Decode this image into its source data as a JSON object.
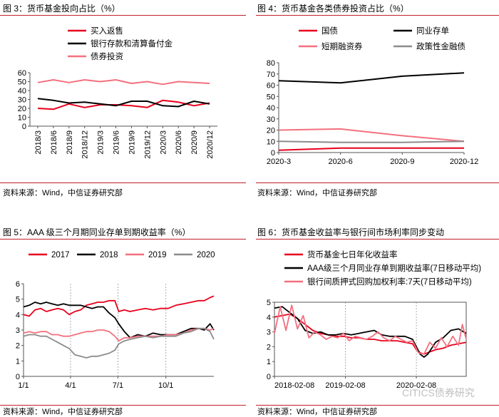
{
  "sources": {
    "p3": "资料来源：Wind，中信证券研究部",
    "p4": "资料来源：Wind，中信证券研究部",
    "p5": "资料来源：Wind，中信证券研究部",
    "p6": "资料来源：Wind，中信证券研究部"
  },
  "watermark": "CITICS债券研究",
  "chart_data": [
    {
      "id": "fig3",
      "type": "line",
      "title": "图 3：货币基金投向占比（%）",
      "categories": [
        "2018/3",
        "2018/6",
        "2018/9",
        "2018/12",
        "2019/3",
        "2019/6",
        "2019/9",
        "2019/12",
        "2020/3",
        "2020/6",
        "2020/9",
        "2020/12"
      ],
      "ylim": [
        0,
        60
      ],
      "yticks": [
        0,
        10,
        20,
        30,
        40,
        50,
        60
      ],
      "grid": false,
      "legend_position": "top-left",
      "series": [
        {
          "name": "买入返售",
          "color": "#e8001c",
          "values": [
            20,
            19,
            25,
            21,
            24,
            24,
            23,
            21,
            29,
            27,
            23,
            26
          ]
        },
        {
          "name": "银行存款和清算备付金",
          "color": "#000000",
          "values": [
            31,
            29,
            26,
            27,
            25,
            23,
            28,
            28,
            23,
            22,
            28,
            25
          ]
        },
        {
          "name": "债券投资",
          "color": "#f4707e",
          "values": [
            49,
            52,
            49,
            52,
            50,
            52,
            48,
            50,
            47,
            50,
            49,
            48
          ]
        }
      ]
    },
    {
      "id": "fig4",
      "type": "line",
      "title": "图 4：货币基金各类债券投资占比（%）",
      "categories": [
        "2020-3",
        "2020-6",
        "2020-9",
        "2020-12"
      ],
      "ylim": [
        0,
        80
      ],
      "yticks": [
        0,
        10,
        20,
        30,
        40,
        50,
        60,
        70,
        80
      ],
      "grid": false,
      "legend_position": "top",
      "series": [
        {
          "name": "国债",
          "color": "#e8001c",
          "values": [
            2,
            4,
            4,
            4
          ]
        },
        {
          "name": "同业存单",
          "color": "#000000",
          "values": [
            64,
            62,
            68,
            71
          ]
        },
        {
          "name": "短期融资券",
          "color": "#f4707e",
          "values": [
            20,
            21,
            15,
            10
          ]
        },
        {
          "name": "政策性金融债",
          "color": "#8c8c8c",
          "values": [
            10,
            9,
            9,
            10
          ]
        }
      ]
    },
    {
      "id": "fig5",
      "type": "line",
      "title": "图 5：AAA 级三个月期同业存单到期收益率（%）",
      "x_labels": [
        "1/1",
        "4/1",
        "7/1",
        "10/1"
      ],
      "x_fracs": [
        0.0,
        0.247,
        0.496,
        0.748
      ],
      "ylim": [
        0,
        6
      ],
      "yticks": [
        0,
        1,
        2,
        3,
        4,
        5,
        6
      ],
      "grid": false,
      "legend_position": "top",
      "series": [
        {
          "name": "2017",
          "color": "#e8001c",
          "x": [
            0,
            0.03,
            0.06,
            0.09,
            0.12,
            0.15,
            0.18,
            0.21,
            0.24,
            0.27,
            0.3,
            0.33,
            0.36,
            0.39,
            0.42,
            0.45,
            0.48,
            0.5,
            0.53,
            0.56,
            0.6,
            0.64,
            0.68,
            0.72,
            0.76,
            0.8,
            0.84,
            0.88,
            0.92,
            0.95,
            0.98,
            1.0
          ],
          "values": [
            4.0,
            3.9,
            4.3,
            4.4,
            4.2,
            4.3,
            4.4,
            4.3,
            4.0,
            4.2,
            4.3,
            4.6,
            4.7,
            4.8,
            4.8,
            4.9,
            4.9,
            4.2,
            4.3,
            4.2,
            4.3,
            4.4,
            4.3,
            4.4,
            4.4,
            4.6,
            4.7,
            4.8,
            4.9,
            4.9,
            5.1,
            5.2
          ]
        },
        {
          "name": "2018",
          "color": "#000000",
          "x": [
            0,
            0.03,
            0.06,
            0.09,
            0.12,
            0.15,
            0.18,
            0.21,
            0.24,
            0.27,
            0.3,
            0.33,
            0.36,
            0.39,
            0.42,
            0.45,
            0.48,
            0.5,
            0.53,
            0.56,
            0.6,
            0.64,
            0.68,
            0.72,
            0.76,
            0.8,
            0.84,
            0.88,
            0.92,
            0.95,
            0.98,
            1.0
          ],
          "values": [
            4.5,
            4.6,
            4.8,
            4.7,
            4.8,
            4.7,
            4.6,
            4.7,
            4.6,
            4.6,
            4.6,
            4.5,
            4.4,
            4.5,
            4.5,
            4.1,
            3.8,
            3.4,
            2.9,
            2.5,
            2.7,
            2.6,
            2.8,
            2.7,
            2.7,
            2.7,
            2.9,
            3.1,
            3.1,
            3.0,
            3.4,
            3.0
          ]
        },
        {
          "name": "2019",
          "color": "#f4707e",
          "x": [
            0,
            0.03,
            0.06,
            0.09,
            0.12,
            0.15,
            0.18,
            0.21,
            0.24,
            0.27,
            0.3,
            0.33,
            0.36,
            0.39,
            0.42,
            0.45,
            0.48,
            0.5,
            0.53,
            0.56,
            0.6,
            0.64,
            0.68,
            0.72,
            0.76,
            0.8,
            0.84,
            0.88,
            0.92,
            0.95,
            0.98,
            1.0
          ],
          "values": [
            2.8,
            2.9,
            2.8,
            2.9,
            2.9,
            2.7,
            2.7,
            2.6,
            2.6,
            2.7,
            2.8,
            2.9,
            2.9,
            3.0,
            3.0,
            2.9,
            2.6,
            2.3,
            2.5,
            2.5,
            2.6,
            2.6,
            2.6,
            2.6,
            2.7,
            2.7,
            2.8,
            3.0,
            3.1,
            3.1,
            3.0,
            3.1
          ]
        },
        {
          "name": "2020",
          "color": "#8c8c8c",
          "x": [
            0,
            0.03,
            0.06,
            0.09,
            0.12,
            0.15,
            0.18,
            0.21,
            0.24,
            0.27,
            0.3,
            0.33,
            0.36,
            0.39,
            0.42,
            0.45,
            0.48,
            0.5,
            0.53,
            0.56,
            0.6,
            0.64,
            0.68,
            0.72,
            0.76,
            0.8,
            0.84,
            0.88,
            0.92,
            0.95,
            0.98,
            1.0
          ],
          "values": [
            2.6,
            2.7,
            2.7,
            2.6,
            2.6,
            2.4,
            2.2,
            2.0,
            1.8,
            1.4,
            1.3,
            1.2,
            1.3,
            1.3,
            1.4,
            1.5,
            1.7,
            2.1,
            2.3,
            2.4,
            2.5,
            2.6,
            2.5,
            2.6,
            2.6,
            2.6,
            2.8,
            2.9,
            3.1,
            3.1,
            2.9,
            2.4
          ]
        }
      ]
    },
    {
      "id": "fig6",
      "type": "line",
      "title": "图 6：货币基金收益率与银行间市场利率同步变动",
      "x_labels": [
        "2018-02-08",
        "2019-02-08",
        "2020-02-08"
      ],
      "x_fracs": [
        0.0,
        0.37,
        0.74
      ],
      "ylim": [
        0,
        5
      ],
      "yticks": [
        0,
        1,
        2,
        3,
        4,
        5
      ],
      "grid": false,
      "legend_position": "top",
      "series": [
        {
          "name": "货币基金七日年化收益率",
          "color": "#e8001c",
          "x": [
            0,
            0.04,
            0.08,
            0.12,
            0.16,
            0.2,
            0.24,
            0.28,
            0.32,
            0.36,
            0.4,
            0.44,
            0.48,
            0.52,
            0.56,
            0.6,
            0.64,
            0.68,
            0.72,
            0.74,
            0.76,
            0.78,
            0.8,
            0.84,
            0.88,
            0.92,
            0.96,
            1.0
          ],
          "values": [
            4.0,
            4.1,
            4.2,
            3.9,
            3.5,
            3.1,
            2.9,
            2.8,
            2.7,
            2.7,
            2.6,
            2.6,
            2.5,
            2.5,
            2.4,
            2.4,
            2.4,
            2.3,
            2.2,
            1.8,
            1.6,
            1.5,
            1.6,
            1.8,
            1.9,
            2.1,
            2.2,
            2.3
          ]
        },
        {
          "name": "AAA级三个月同业存单到期收益率(7日移动平均)",
          "color": "#000000",
          "x": [
            0,
            0.04,
            0.08,
            0.12,
            0.16,
            0.2,
            0.24,
            0.28,
            0.32,
            0.36,
            0.4,
            0.44,
            0.48,
            0.52,
            0.56,
            0.6,
            0.64,
            0.68,
            0.72,
            0.74,
            0.76,
            0.78,
            0.8,
            0.84,
            0.88,
            0.92,
            0.96,
            1.0
          ],
          "values": [
            4.6,
            4.7,
            4.3,
            3.9,
            3.1,
            2.9,
            3.0,
            2.8,
            2.8,
            2.9,
            2.8,
            2.9,
            3.0,
            3.1,
            2.8,
            2.7,
            2.7,
            2.7,
            2.5,
            2.0,
            1.5,
            1.3,
            1.5,
            2.3,
            2.6,
            3.1,
            3.2,
            2.9
          ]
        },
        {
          "name": "银行间质押式回购加权利率:7天(7日移动平均)",
          "color": "#f4707e",
          "x": [
            0,
            0.03,
            0.06,
            0.09,
            0.12,
            0.15,
            0.18,
            0.21,
            0.24,
            0.27,
            0.3,
            0.33,
            0.36,
            0.39,
            0.42,
            0.45,
            0.48,
            0.51,
            0.54,
            0.57,
            0.6,
            0.63,
            0.66,
            0.69,
            0.72,
            0.75,
            0.78,
            0.81,
            0.84,
            0.87,
            0.9,
            0.93,
            0.96,
            0.98,
            1.0
          ],
          "values": [
            2.9,
            4.7,
            3.1,
            4.8,
            3.2,
            4.1,
            2.6,
            3.0,
            2.8,
            2.5,
            2.7,
            2.6,
            2.9,
            2.4,
            2.7,
            2.6,
            2.5,
            2.7,
            3.0,
            2.6,
            2.4,
            2.7,
            2.5,
            2.3,
            2.4,
            1.6,
            1.5,
            2.3,
            1.9,
            2.6,
            2.0,
            2.7,
            2.1,
            3.5,
            2.5
          ]
        }
      ]
    }
  ]
}
